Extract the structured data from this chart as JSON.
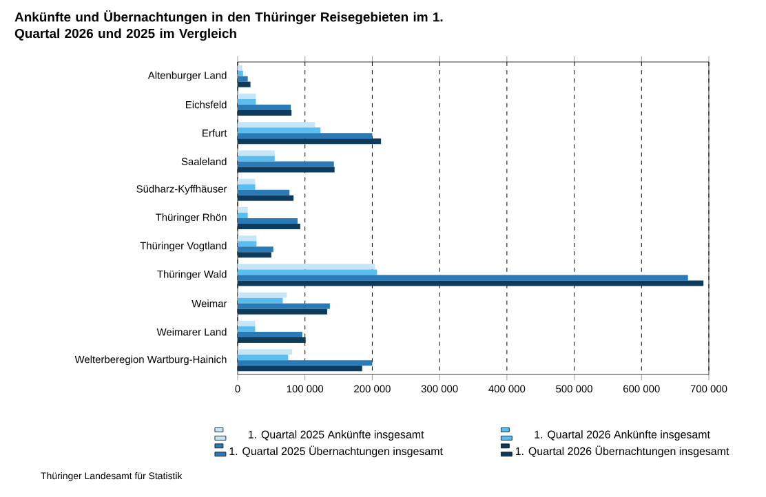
{
  "chart_data": {
    "type": "bar",
    "orientation": "horizontal",
    "title": "Ankünfte und Übernachtungen in den Thüringer Reisegebieten im 1. Quartal 2026 und 2025 im Vergleich",
    "categories": [
      "Altenburger Land",
      "Eichsfeld",
      "Erfurt",
      "Saaleland",
      "Südharz-Kyffhäuser",
      "Thüringer Rhön",
      "Thüringer Vogtland",
      "Thüringer Wald",
      "Weimar",
      "Weimarer Land",
      "Welterberegion Wartburg-Hainich"
    ],
    "series": [
      {
        "name": "1. Quartal 2025 Ankünfte insgesamt",
        "color": "#c6e5f7",
        "values": [
          7000,
          27000,
          115000,
          55000,
          26000,
          15000,
          28000,
          204000,
          73000,
          26000,
          81000
        ]
      },
      {
        "name": "1. Quartal 2026 Ankünfte insgesamt",
        "color": "#5bbcee",
        "values": [
          8000,
          27000,
          123000,
          55000,
          26000,
          15000,
          28000,
          207000,
          67000,
          26000,
          75000
        ]
      },
      {
        "name": "1. Quartal 2025 Übernachtungen insgesamt",
        "color": "#2a7bb5",
        "values": [
          15000,
          79000,
          200000,
          143000,
          77000,
          89000,
          53000,
          669000,
          137000,
          96000,
          200000
        ]
      },
      {
        "name": "1. Quartal 2026 Übernachtungen insgesamt",
        "color": "#0d3b5e",
        "values": [
          19000,
          80000,
          213000,
          144000,
          83000,
          93000,
          50000,
          692000,
          133000,
          101000,
          185000
        ]
      }
    ],
    "xlim": [
      0,
      700000
    ],
    "xticks": [
      0,
      {
        "value": 100000,
        "label": "100 000"
      },
      {
        "value": 200000,
        "label": "200 000"
      },
      {
        "value": 300000,
        "label": "300 000"
      },
      {
        "value": 400000,
        "label": "400 000"
      },
      {
        "value": 500000,
        "label": "500 000"
      },
      {
        "value": 600000,
        "label": "600 000"
      },
      {
        "value": 700000,
        "label": "700 000"
      }
    ],
    "grid": "x",
    "legend": "bottom",
    "annotations": [
      "Thüringer Landesamt für Statistik"
    ]
  }
}
